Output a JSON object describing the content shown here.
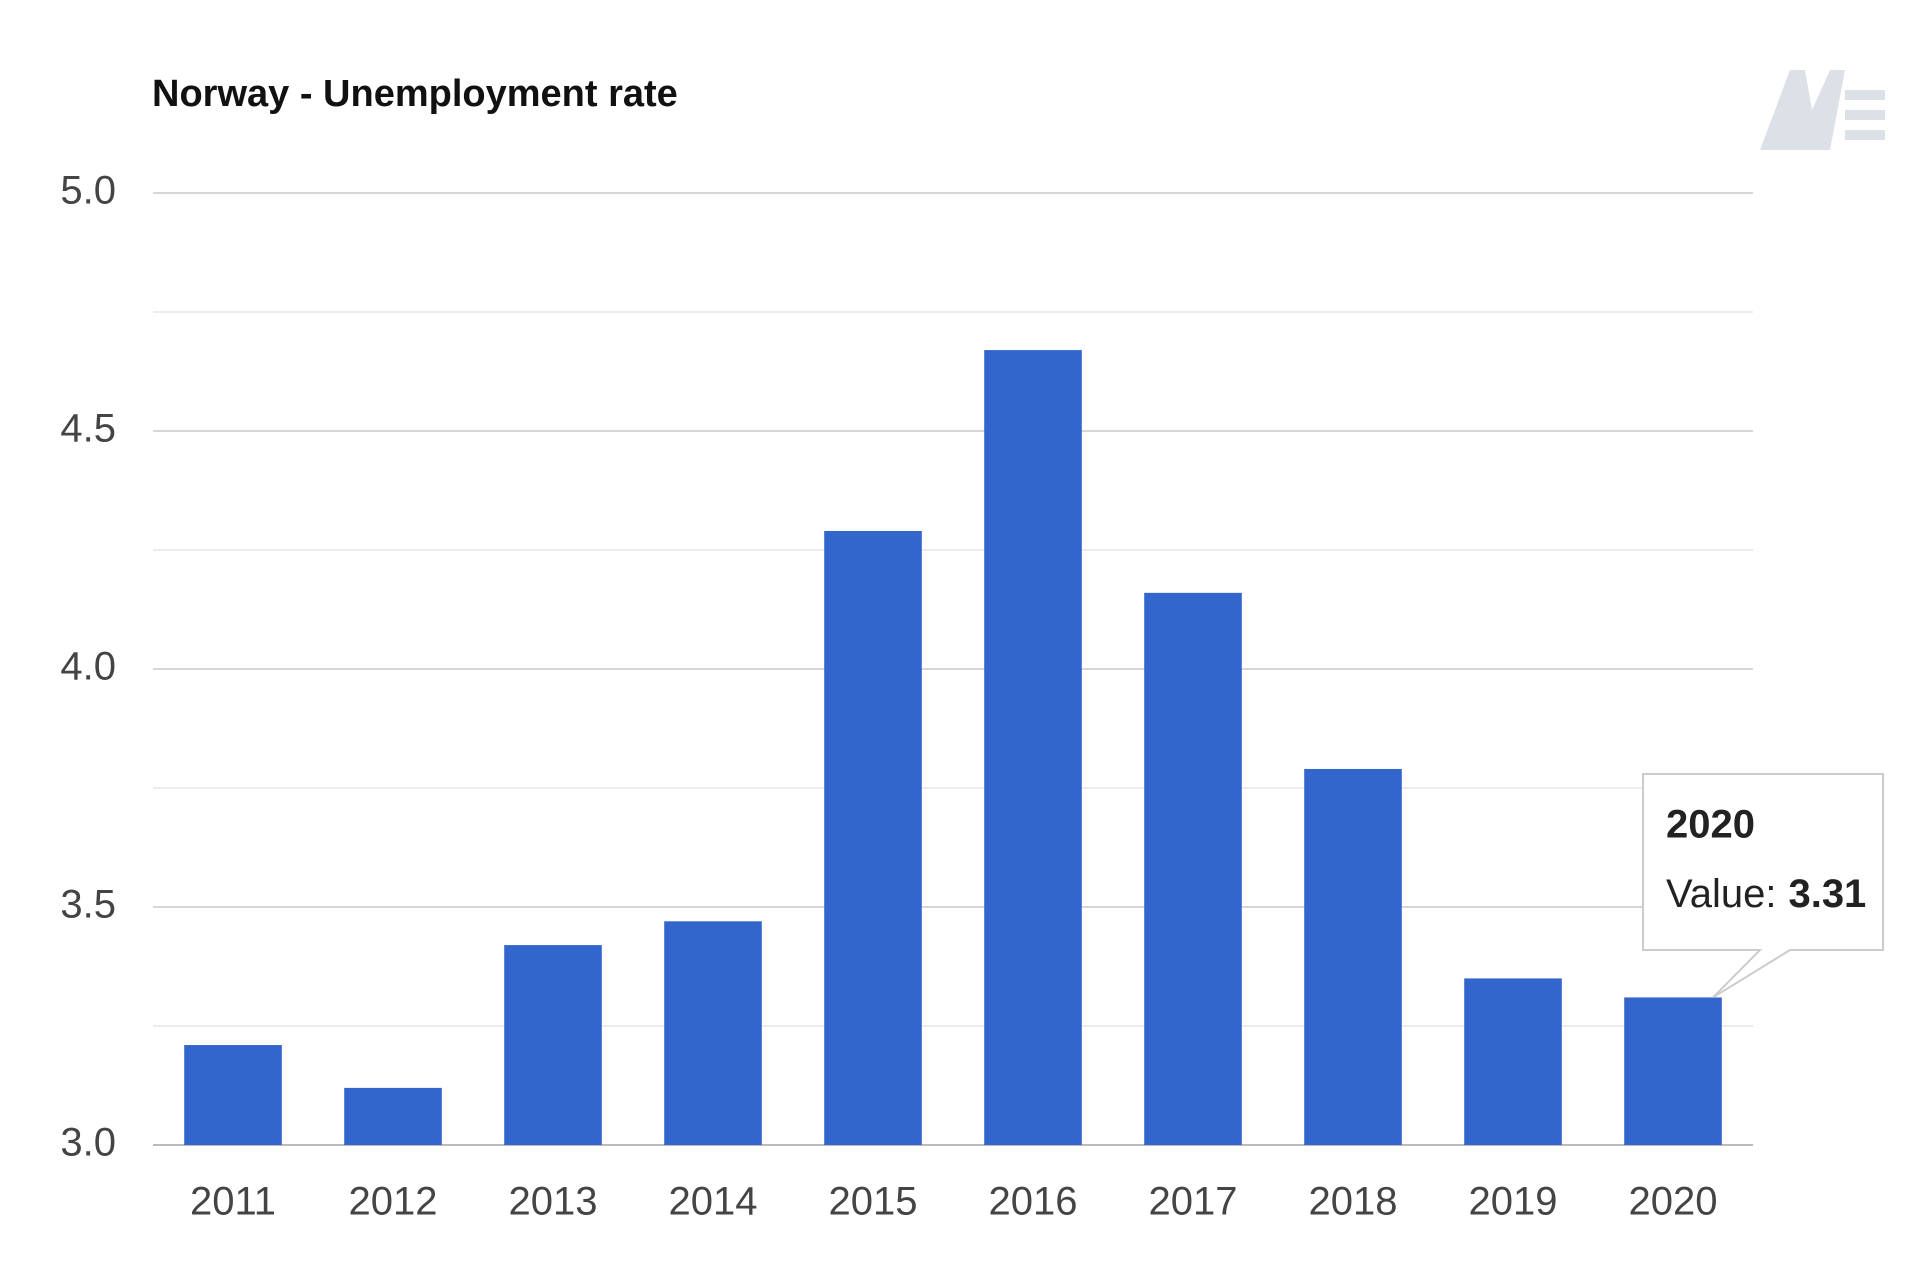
{
  "chart_data": {
    "type": "bar",
    "title": "Norway - Unemployment rate",
    "categories": [
      "2011",
      "2012",
      "2013",
      "2014",
      "2015",
      "2016",
      "2017",
      "2018",
      "2019",
      "2020"
    ],
    "values": [
      3.21,
      3.12,
      3.42,
      3.47,
      4.29,
      4.67,
      4.16,
      3.79,
      3.35,
      3.31
    ],
    "color": "#3366cc",
    "ylim": [
      3,
      5
    ],
    "yticks": [
      {
        "value": 3,
        "label": "3.0"
      },
      {
        "value": 3.5,
        "label": "3.5"
      },
      {
        "value": 4,
        "label": "4.0"
      },
      {
        "value": 4.5,
        "label": "4.5"
      },
      {
        "value": 5,
        "label": "5.0"
      }
    ],
    "minor_gridlines": [
      3.25,
      3.75,
      4.25,
      4.75
    ],
    "grid": true,
    "tooltip_label": "Value:"
  }
}
